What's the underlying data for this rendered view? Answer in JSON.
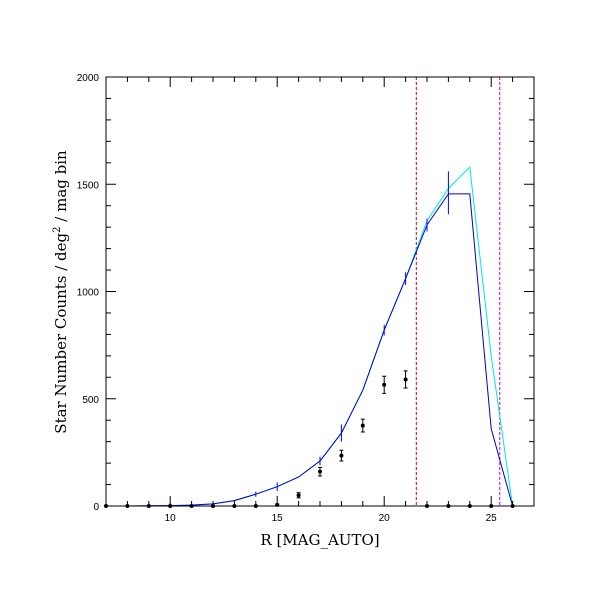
{
  "chart_data": {
    "type": "line",
    "xlabel": "R [MAG_AUTO]",
    "ylabel_main": "Star Number Counts / deg",
    "ylabel_sup": "2",
    "ylabel_tail": " / mag bin",
    "xlim": [
      7,
      27
    ],
    "ylim": [
      0,
      2000
    ],
    "x_ticks": [
      10,
      15,
      20,
      25
    ],
    "y_ticks": [
      0,
      500,
      1000,
      1500,
      2000
    ],
    "grid": false,
    "colors": {
      "model_cyan": "#00e5e5",
      "model_blue": "#0000cc",
      "error_bars_blue": "#0000ff",
      "data_points": "#000000",
      "limit_red": "#cc0000",
      "limit_magenta": "#cc00cc"
    },
    "series": [
      {
        "x": [
          7,
          8,
          9,
          10,
          11,
          12,
          13,
          14,
          15,
          16,
          17,
          18,
          19,
          20,
          21,
          22,
          23,
          24,
          25,
          26
        ],
        "y": [
          0,
          0,
          1,
          2,
          4,
          10,
          25,
          55,
          90,
          135,
          210,
          340,
          540,
          820,
          1060,
          1330,
          1480,
          1580,
          700,
          0
        ],
        "style": "line",
        "color": "#00e5e5"
      },
      {
        "x": [
          7,
          8,
          9,
          10,
          11,
          12,
          13,
          14,
          15,
          16,
          17,
          18,
          19,
          20,
          21,
          22,
          23,
          24,
          25,
          26
        ],
        "y": [
          0,
          0,
          1,
          2,
          4,
          10,
          25,
          55,
          90,
          135,
          210,
          340,
          540,
          820,
          1060,
          1310,
          1455,
          1455,
          360,
          0
        ],
        "style": "line",
        "color": "#0000cc"
      },
      {
        "x": [
          10,
          12,
          14,
          15,
          17,
          18,
          20,
          21,
          22,
          23
        ],
        "y": [
          2,
          10,
          55,
          90,
          210,
          340,
          820,
          1060,
          1310,
          1460
        ],
        "yerr": [
          12,
          6,
          12,
          20,
          20,
          40,
          25,
          30,
          30,
          100
        ],
        "style": "errorbar",
        "color": "#0000ff"
      },
      {
        "x": [
          7,
          8,
          9,
          10,
          11,
          12,
          13,
          14,
          15,
          16,
          17,
          18,
          19,
          20,
          21,
          22,
          23,
          24,
          25,
          26
        ],
        "y": [
          0,
          0,
          0,
          0,
          0,
          0,
          0,
          0,
          5,
          50,
          160,
          235,
          375,
          565,
          590,
          0,
          0,
          0,
          0,
          0
        ],
        "yerr": [
          0,
          0,
          0,
          0,
          0,
          0,
          0,
          0,
          4,
          12,
          20,
          25,
          30,
          40,
          40,
          0,
          0,
          0,
          0,
          0
        ],
        "style": "points",
        "color": "#000000"
      }
    ],
    "vlines": [
      {
        "x": 21.5,
        "color": "#cc0000",
        "style": "dashed"
      },
      {
        "x": 25.4,
        "color": "#cc00cc",
        "style": "dashed"
      }
    ]
  }
}
